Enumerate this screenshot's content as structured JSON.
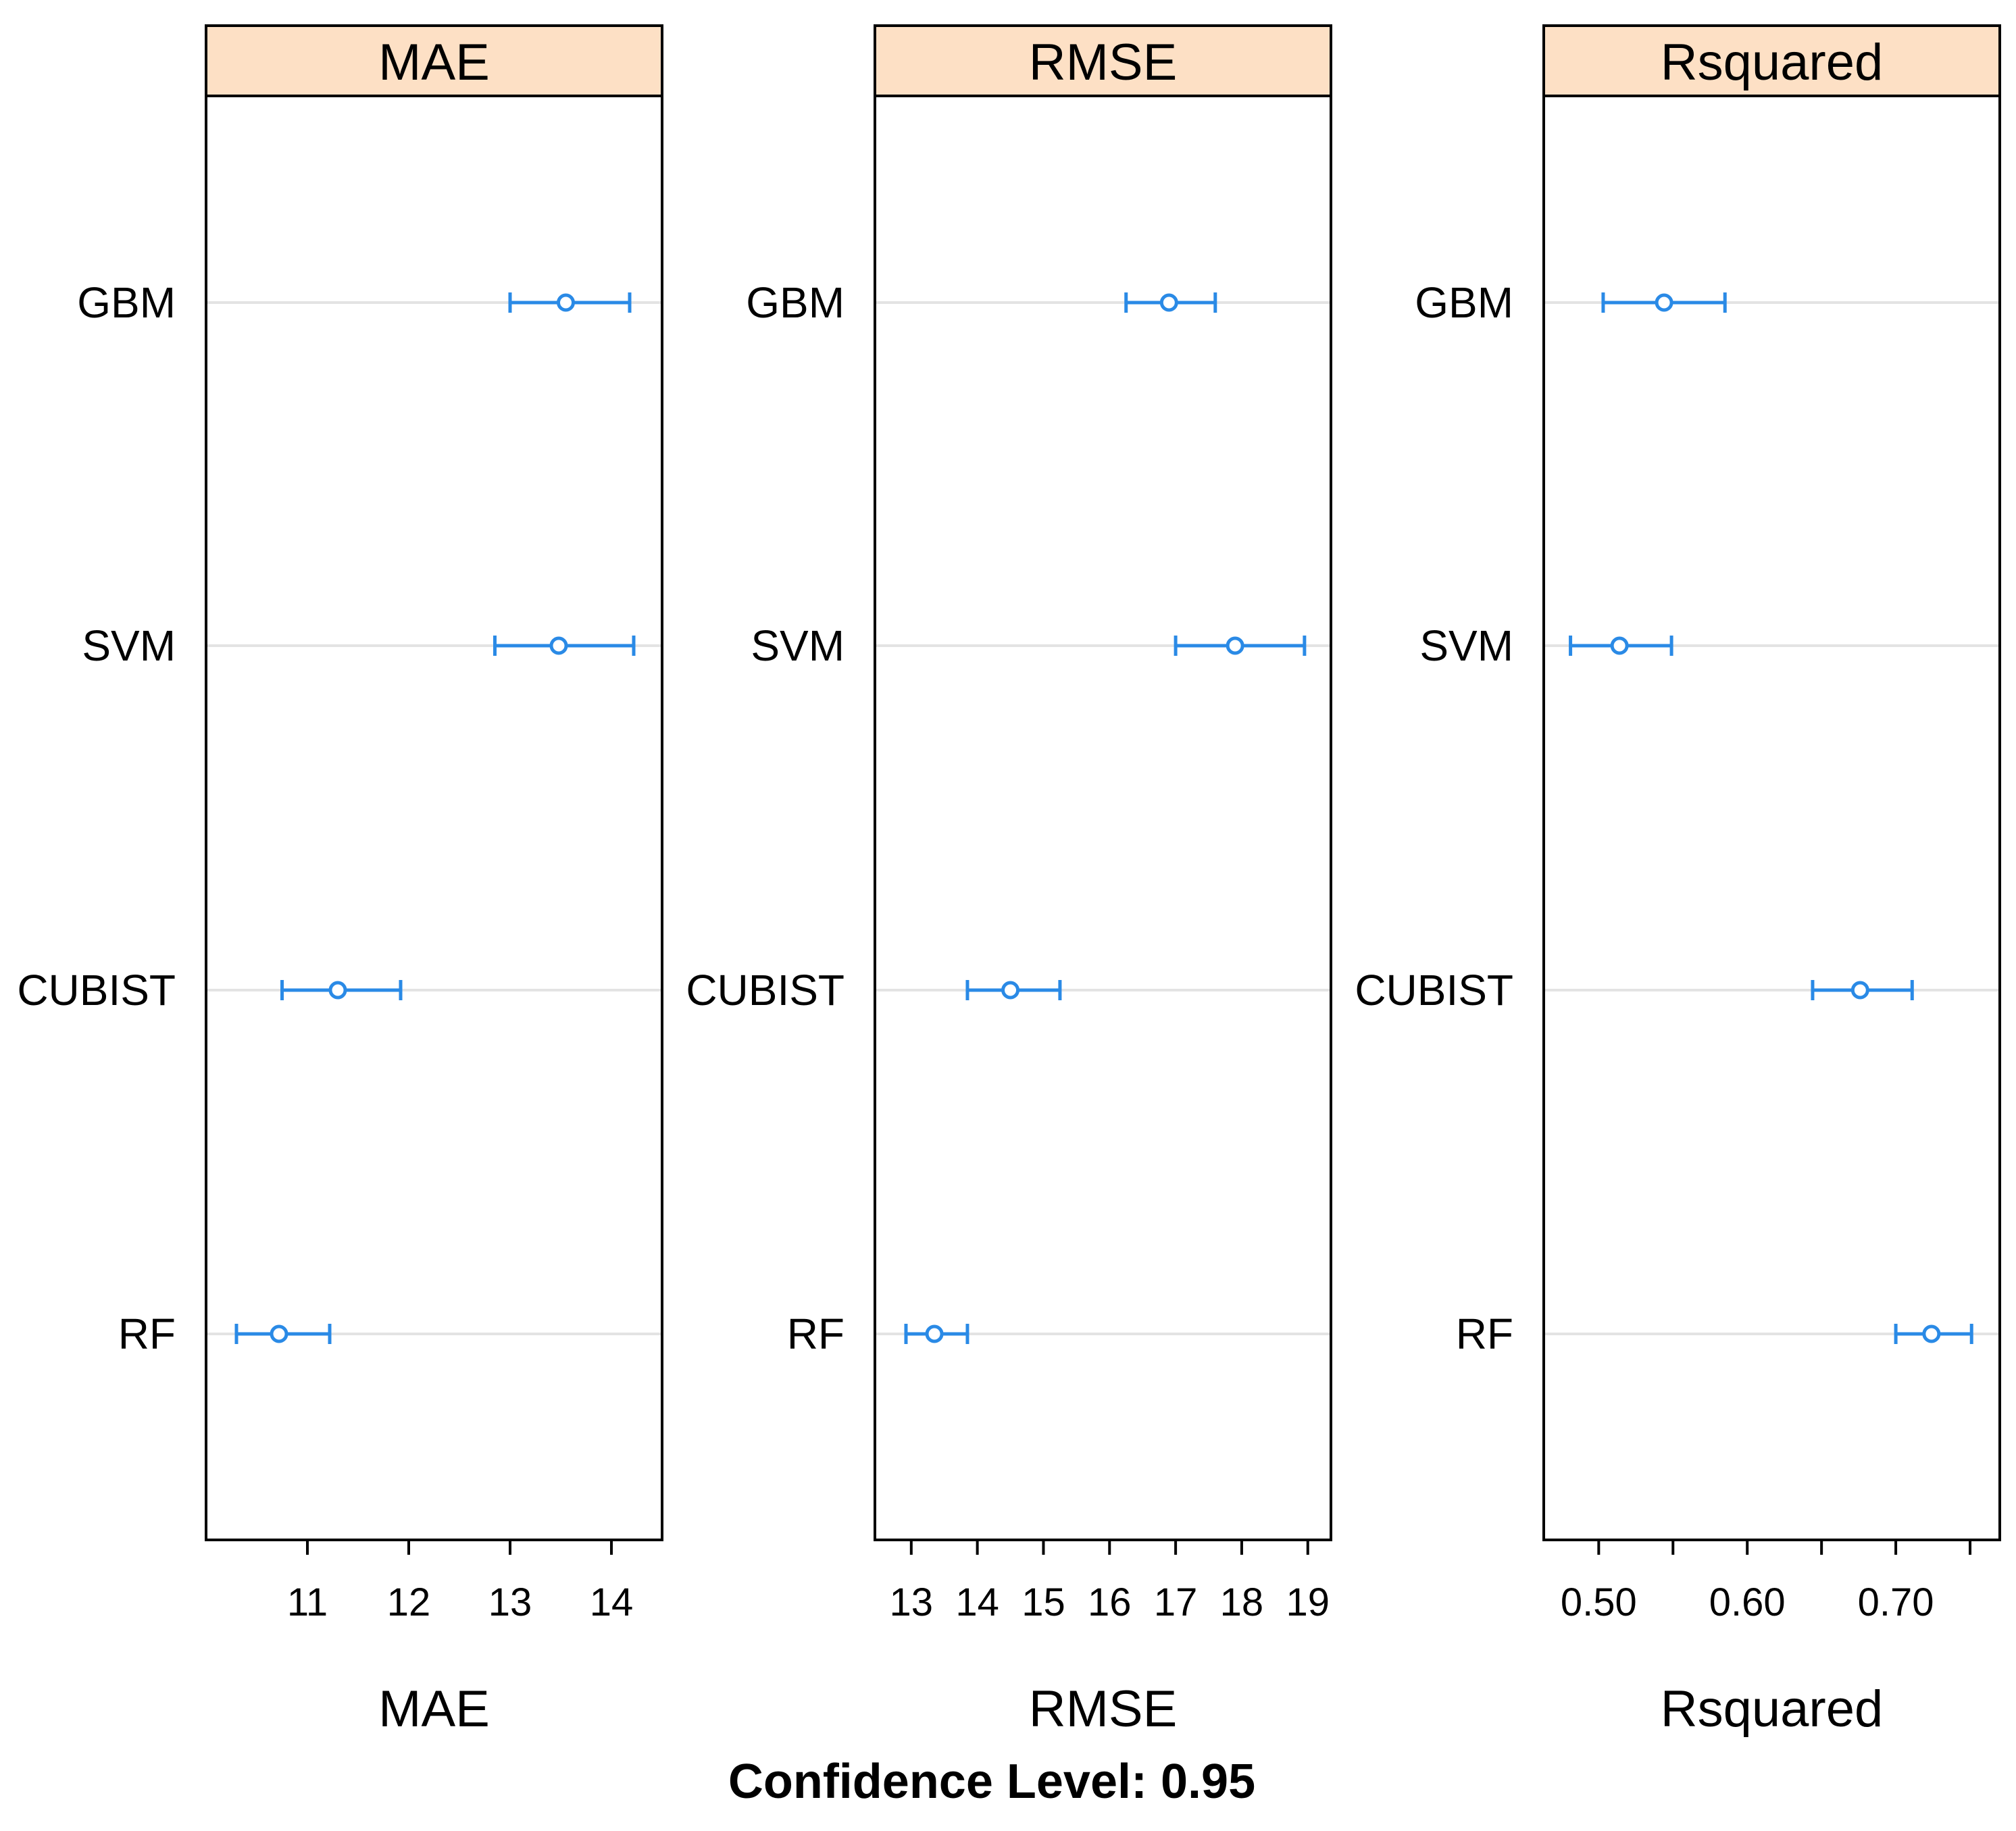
{
  "chart_data": [
    {
      "type": "dotplot-ci",
      "panel": "MAE",
      "title": "MAE",
      "xlabel": "MAE",
      "xlim": [
        10.0,
        14.5
      ],
      "xticks": [
        11,
        12,
        13,
        14
      ],
      "tick_labels": [
        "11",
        "12",
        "13",
        "14"
      ],
      "categories": [
        "GBM",
        "SVM",
        "CUBIST",
        "RF"
      ],
      "estimate": [
        13.55,
        13.48,
        11.3,
        10.72
      ],
      "lower": [
        13.0,
        12.85,
        10.75,
        10.3
      ],
      "upper": [
        14.18,
        14.22,
        11.92,
        11.22
      ]
    },
    {
      "type": "dotplot-ci",
      "panel": "RMSE",
      "title": "RMSE",
      "xlabel": "RMSE",
      "xlim": [
        12.45,
        19.35
      ],
      "xticks": [
        13,
        14,
        15,
        16,
        17,
        18,
        19
      ],
      "tick_labels": [
        "13",
        "14",
        "15",
        "16",
        "17",
        "18",
        "19"
      ],
      "categories": [
        "GBM",
        "SVM",
        "CUBIST",
        "RF"
      ],
      "estimate": [
        16.9,
        17.9,
        14.5,
        13.35
      ],
      "lower": [
        16.25,
        17.0,
        13.85,
        12.92
      ],
      "upper": [
        17.6,
        18.95,
        15.25,
        13.85
      ]
    },
    {
      "type": "dotplot-ci",
      "panel": "Rsquared",
      "title": "Rsquared",
      "xlabel": "Rsquared",
      "xlim": [
        0.463,
        0.77
      ],
      "xticks": [
        0.5,
        0.55,
        0.6,
        0.65,
        0.7,
        0.75
      ],
      "tick_labels": [
        "0.50",
        "",
        "0.60",
        "",
        "0.70",
        ""
      ],
      "categories": [
        "GBM",
        "SVM",
        "CUBIST",
        "RF"
      ],
      "estimate": [
        0.544,
        0.514,
        0.676,
        0.724
      ],
      "lower": [
        0.503,
        0.481,
        0.644,
        0.7
      ],
      "upper": [
        0.585,
        0.549,
        0.711,
        0.751
      ]
    }
  ],
  "caption": "Confidence Level: 0.95",
  "colors": {
    "strip_fill": "#fde0c5",
    "point_color": "#2a8ae6",
    "gridline": "#e3e3e3",
    "frame": "#000000"
  }
}
